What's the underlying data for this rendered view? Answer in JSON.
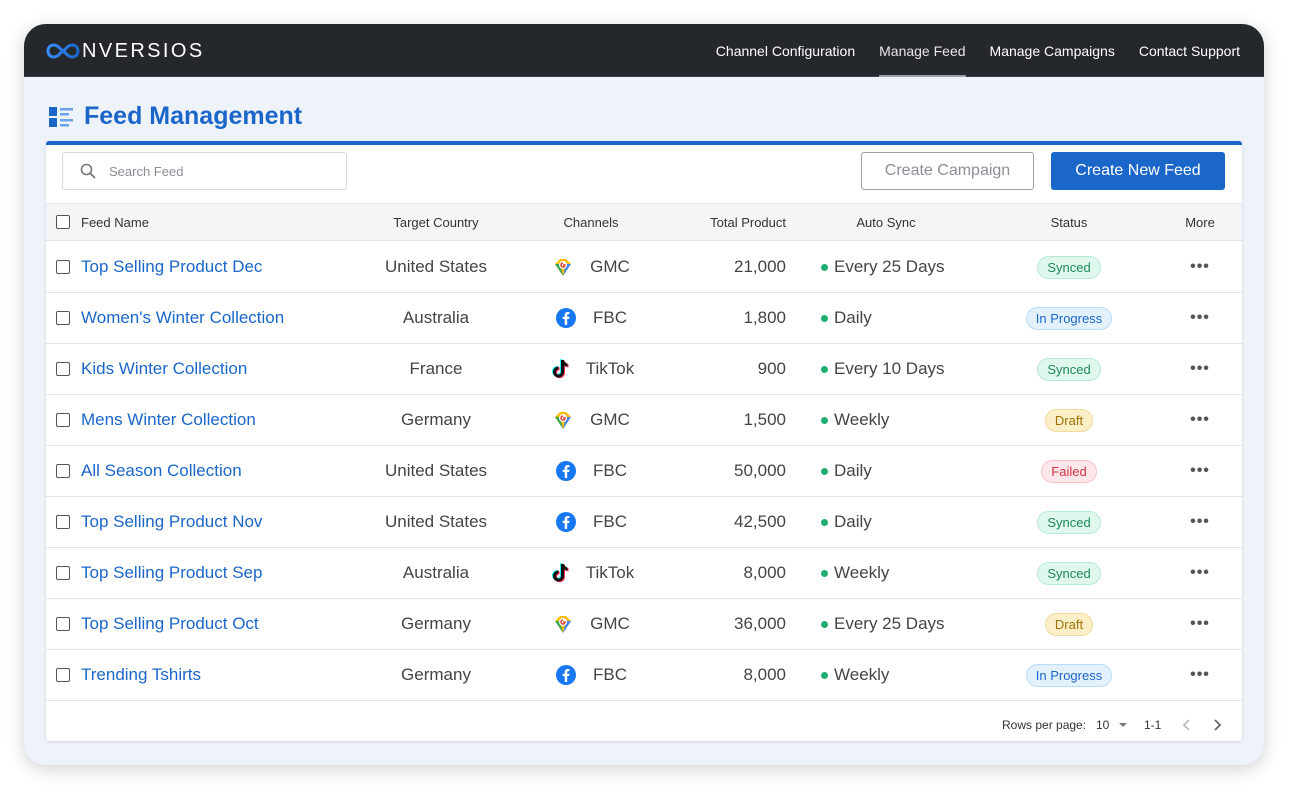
{
  "brand": {
    "logo_text": "NVERSIOS"
  },
  "nav": [
    {
      "label": "Channel Configuration",
      "active": false
    },
    {
      "label": "Manage Feed",
      "active": true
    },
    {
      "label": "Manage Campaigns",
      "active": false
    },
    {
      "label": "Contact Support",
      "active": false
    }
  ],
  "page": {
    "title": "Feed Management"
  },
  "toolbar": {
    "search_placeholder": "Search Feed",
    "create_campaign_label": "Create Campaign",
    "create_feed_label": "Create New Feed"
  },
  "table": {
    "headers": {
      "name": "Feed Name",
      "country": "Target Country",
      "channels": "Channels",
      "total": "Total Product",
      "sync": "Auto Sync",
      "status": "Status",
      "more": "More"
    },
    "rows": [
      {
        "name": "Top Selling Product Dec",
        "country": "United States",
        "channel": "GMC",
        "channel_icon": "google-merchant-icon",
        "total": "21,000",
        "sync": "Every 25 Days",
        "status": "Synced",
        "status_type": "synced"
      },
      {
        "name": "Women's Winter Collection",
        "country": "Australia",
        "channel": "FBC",
        "channel_icon": "facebook-icon",
        "total": "1,800",
        "sync": "Daily",
        "status": "In Progress",
        "status_type": "progress"
      },
      {
        "name": "Kids Winter Collection",
        "country": "France",
        "channel": "TikTok",
        "channel_icon": "tiktok-icon",
        "total": "900",
        "sync": "Every 10 Days",
        "status": "Synced",
        "status_type": "synced"
      },
      {
        "name": "Mens Winter Collection",
        "country": "Germany",
        "channel": "GMC",
        "channel_icon": "google-merchant-icon",
        "total": "1,500",
        "sync": "Weekly",
        "status": "Draft",
        "status_type": "draft"
      },
      {
        "name": "All Season Collection",
        "country": "United States",
        "channel": "FBC",
        "channel_icon": "facebook-icon",
        "total": "50,000",
        "sync": "Daily",
        "status": "Failed",
        "status_type": "failed"
      },
      {
        "name": "Top Selling Product Nov",
        "country": "United States",
        "channel": "FBC",
        "channel_icon": "facebook-icon",
        "total": "42,500",
        "sync": "Daily",
        "status": "Synced",
        "status_type": "synced"
      },
      {
        "name": "Top Selling Product Sep",
        "country": "Australia",
        "channel": "TikTok",
        "channel_icon": "tiktok-icon",
        "total": "8,000",
        "sync": "Weekly",
        "status": "Synced",
        "status_type": "synced"
      },
      {
        "name": "Top Selling Product Oct",
        "country": "Germany",
        "channel": "GMC",
        "channel_icon": "google-merchant-icon",
        "total": "36,000",
        "sync": "Every 25 Days",
        "status": "Draft",
        "status_type": "draft"
      },
      {
        "name": "Trending Tshirts",
        "country": "Germany",
        "channel": "FBC",
        "channel_icon": "facebook-icon",
        "total": "8,000",
        "sync": "Weekly",
        "status": "In Progress",
        "status_type": "progress"
      }
    ]
  },
  "pagination": {
    "rows_per_page_label": "Rows per page:",
    "rows_per_page_value": "10",
    "range": "1-1"
  },
  "colors": {
    "brand_blue": "#1b66c9",
    "topbar": "#24282d",
    "sync_dot": "#1fae6f"
  }
}
